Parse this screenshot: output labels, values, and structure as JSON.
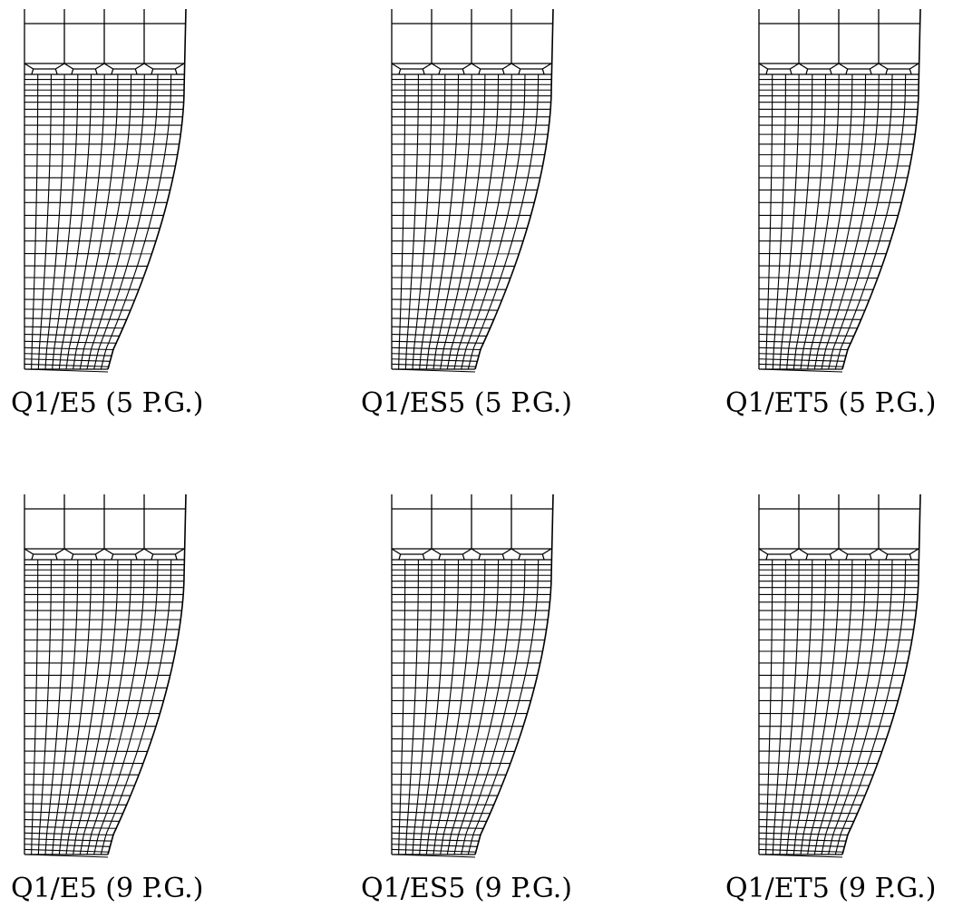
{
  "panels": [
    {
      "label": "Q1/E5 (5 P.G.)"
    },
    {
      "label": "Q1/ES5 (5 P.G.)"
    },
    {
      "label": "Q1/ET5 (5 P.G.)"
    },
    {
      "label": "Q1/E5 (9 P.G.)"
    },
    {
      "label": "Q1/ES5 (9 P.G.)"
    },
    {
      "label": "Q1/ET5 (9 P.G.)"
    }
  ],
  "mesh": {
    "line_color": "#000000",
    "background": "#ffffff"
  }
}
